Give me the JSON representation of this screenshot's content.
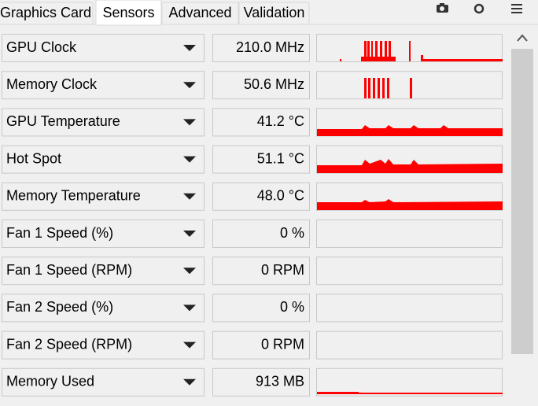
{
  "tabs": [
    "Graphics Card",
    "Sensors",
    "Advanced",
    "Validation"
  ],
  "active_tab": "Sensors",
  "sensors": [
    {
      "name": "GPU Clock",
      "value": "210.0 MHz"
    },
    {
      "name": "Memory Clock",
      "value": "50.6 MHz"
    },
    {
      "name": "GPU Temperature",
      "value": "41.2 °C"
    },
    {
      "name": "Hot Spot",
      "value": "51.1 °C"
    },
    {
      "name": "Memory Temperature",
      "value": "48.0 °C"
    },
    {
      "name": "Fan 1 Speed (%)",
      "value": "0 %"
    },
    {
      "name": "Fan 1 Speed (RPM)",
      "value": "0 RPM"
    },
    {
      "name": "Fan 2 Speed (%)",
      "value": "0 %"
    },
    {
      "name": "Fan 2 Speed (RPM)",
      "value": "0 RPM"
    },
    {
      "name": "Memory Used",
      "value": "913 MB"
    }
  ]
}
